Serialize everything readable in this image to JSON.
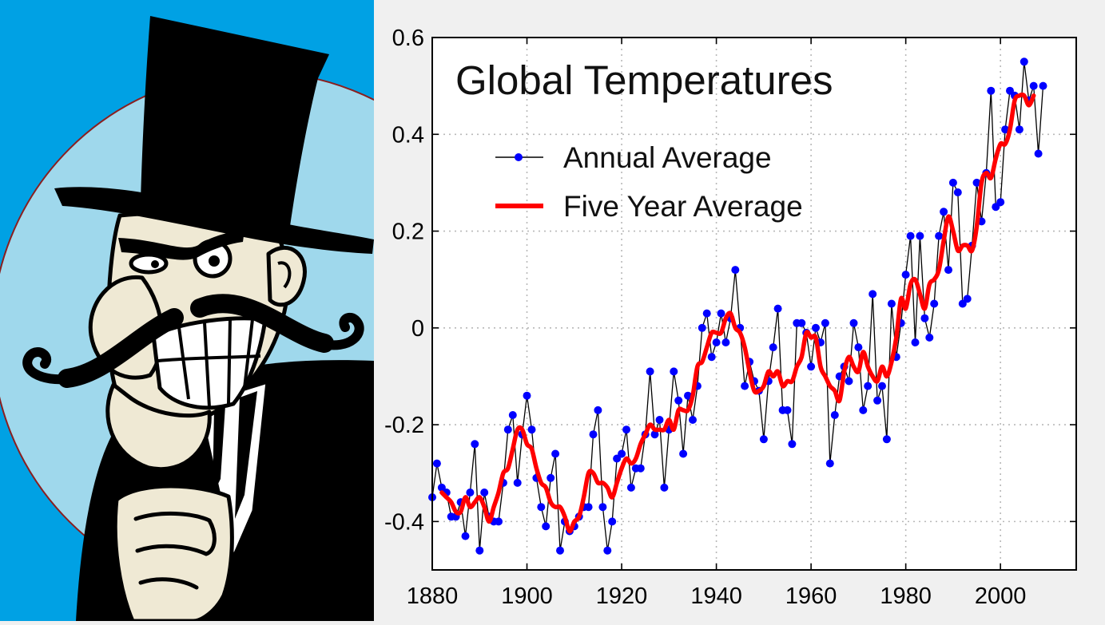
{
  "illustration": {
    "background_color": "#00a1e4",
    "circle_color": "#9fd8ec",
    "circle_border_color": "#8b1e1e",
    "skin_color": "#efe9d4"
  },
  "chart_data": {
    "type": "line",
    "title": "Global Temperatures",
    "xlim": [
      1880,
      2016
    ],
    "ylim": [
      -0.5,
      0.6
    ],
    "x_ticks": [
      1880,
      1900,
      1920,
      1940,
      1960,
      1980,
      2000
    ],
    "x_tick_labels": [
      "1880",
      "1900",
      "1920",
      "1940",
      "1960",
      "1980",
      "2000"
    ],
    "y_ticks": [
      -0.4,
      -0.2,
      0,
      0.2,
      0.4,
      0.6
    ],
    "y_tick_labels": [
      "-0.4",
      "-0.2",
      "0",
      "0.2",
      "0.4",
      "0.6"
    ],
    "grid": true,
    "legend_position": "top-left",
    "series": [
      {
        "name": "Annual Average",
        "marker": "circle",
        "marker_color": "#0000ff",
        "line_color": "#000000",
        "x": [
          1880,
          1881,
          1882,
          1883,
          1884,
          1885,
          1886,
          1887,
          1888,
          1889,
          1890,
          1891,
          1892,
          1893,
          1894,
          1895,
          1896,
          1897,
          1898,
          1899,
          1900,
          1901,
          1902,
          1903,
          1904,
          1905,
          1906,
          1907,
          1908,
          1909,
          1910,
          1911,
          1912,
          1913,
          1914,
          1915,
          1916,
          1917,
          1918,
          1919,
          1920,
          1921,
          1922,
          1923,
          1924,
          1925,
          1926,
          1927,
          1928,
          1929,
          1930,
          1931,
          1932,
          1933,
          1934,
          1935,
          1936,
          1937,
          1938,
          1939,
          1940,
          1941,
          1942,
          1943,
          1944,
          1945,
          1946,
          1947,
          1948,
          1949,
          1950,
          1951,
          1952,
          1953,
          1954,
          1955,
          1956,
          1957,
          1958,
          1959,
          1960,
          1961,
          1962,
          1963,
          1964,
          1965,
          1966,
          1967,
          1968,
          1969,
          1970,
          1971,
          1972,
          1973,
          1974,
          1975,
          1976,
          1977,
          1978,
          1979,
          1980,
          1981,
          1982,
          1983,
          1984,
          1985,
          1986,
          1987,
          1988,
          1989,
          1990,
          1991,
          1992,
          1993,
          1994,
          1995,
          1996,
          1997,
          1998,
          1999,
          2000,
          2001,
          2002,
          2003,
          2004,
          2005,
          2006,
          2007,
          2008,
          2009
        ],
        "values": [
          -0.35,
          -0.28,
          -0.33,
          -0.34,
          -0.39,
          -0.39,
          -0.36,
          -0.43,
          -0.34,
          -0.24,
          -0.46,
          -0.34,
          -0.39,
          -0.4,
          -0.4,
          -0.32,
          -0.21,
          -0.18,
          -0.32,
          -0.22,
          -0.14,
          -0.21,
          -0.31,
          -0.37,
          -0.41,
          -0.31,
          -0.26,
          -0.46,
          -0.4,
          -0.42,
          -0.41,
          -0.39,
          -0.37,
          -0.37,
          -0.22,
          -0.17,
          -0.37,
          -0.46,
          -0.4,
          -0.27,
          -0.26,
          -0.21,
          -0.33,
          -0.29,
          -0.29,
          -0.22,
          -0.09,
          -0.22,
          -0.19,
          -0.33,
          -0.21,
          -0.09,
          -0.15,
          -0.26,
          -0.14,
          -0.19,
          -0.12,
          0.0,
          0.03,
          -0.06,
          -0.03,
          0.03,
          -0.03,
          0.02,
          0.12,
          0.0,
          -0.12,
          -0.07,
          -0.11,
          -0.13,
          -0.23,
          -0.11,
          -0.04,
          0.04,
          -0.17,
          -0.17,
          -0.24,
          0.01,
          0.01,
          -0.01,
          -0.08,
          0.0,
          -0.03,
          0.01,
          -0.28,
          -0.18,
          -0.1,
          -0.08,
          -0.11,
          0.01,
          -0.04,
          -0.17,
          -0.12,
          0.07,
          -0.15,
          -0.12,
          -0.23,
          0.05,
          -0.06,
          0.01,
          0.11,
          0.19,
          -0.03,
          0.19,
          0.02,
          -0.02,
          0.05,
          0.19,
          0.24,
          0.12,
          0.3,
          0.28,
          0.05,
          0.06,
          0.17,
          0.3,
          0.22,
          0.32,
          0.49,
          0.25,
          0.26,
          0.41,
          0.49,
          0.48,
          0.41,
          0.55,
          0.47,
          0.5,
          0.36,
          0.5
        ]
      },
      {
        "name": "Five Year Average",
        "line_color": "#ff0000",
        "x": [
          1882,
          1883,
          1884,
          1885,
          1886,
          1887,
          1888,
          1889,
          1890,
          1891,
          1892,
          1893,
          1894,
          1895,
          1896,
          1897,
          1898,
          1899,
          1900,
          1901,
          1902,
          1903,
          1904,
          1905,
          1906,
          1907,
          1908,
          1909,
          1910,
          1911,
          1912,
          1913,
          1914,
          1915,
          1916,
          1917,
          1918,
          1919,
          1920,
          1921,
          1922,
          1923,
          1924,
          1925,
          1926,
          1927,
          1928,
          1929,
          1930,
          1931,
          1932,
          1933,
          1934,
          1935,
          1936,
          1937,
          1938,
          1939,
          1940,
          1941,
          1942,
          1943,
          1944,
          1945,
          1946,
          1947,
          1948,
          1949,
          1950,
          1951,
          1952,
          1953,
          1954,
          1955,
          1956,
          1957,
          1958,
          1959,
          1960,
          1961,
          1962,
          1963,
          1964,
          1965,
          1966,
          1967,
          1968,
          1969,
          1970,
          1971,
          1972,
          1973,
          1974,
          1975,
          1976,
          1977,
          1978,
          1979,
          1980,
          1981,
          1982,
          1983,
          1984,
          1985,
          1986,
          1987,
          1988,
          1989,
          1990,
          1991,
          1992,
          1993,
          1994,
          1995,
          1996,
          1997,
          1998,
          1999,
          2000,
          2001,
          2002,
          2003,
          2004,
          2005,
          2006,
          2007
        ],
        "values": [
          -0.34,
          -0.35,
          -0.36,
          -0.38,
          -0.38,
          -0.35,
          -0.37,
          -0.36,
          -0.35,
          -0.37,
          -0.4,
          -0.37,
          -0.34,
          -0.3,
          -0.29,
          -0.25,
          -0.21,
          -0.21,
          -0.24,
          -0.25,
          -0.29,
          -0.32,
          -0.33,
          -0.36,
          -0.37,
          -0.37,
          -0.39,
          -0.42,
          -0.4,
          -0.39,
          -0.35,
          -0.3,
          -0.3,
          -0.32,
          -0.32,
          -0.33,
          -0.35,
          -0.32,
          -0.29,
          -0.27,
          -0.28,
          -0.27,
          -0.24,
          -0.22,
          -0.2,
          -0.21,
          -0.21,
          -0.21,
          -0.19,
          -0.21,
          -0.17,
          -0.17,
          -0.17,
          -0.14,
          -0.08,
          -0.07,
          -0.04,
          -0.01,
          -0.01,
          -0.01,
          0.02,
          0.03,
          0.0,
          -0.01,
          -0.04,
          -0.09,
          -0.13,
          -0.13,
          -0.12,
          -0.09,
          -0.1,
          -0.09,
          -0.12,
          -0.11,
          -0.11,
          -0.08,
          -0.06,
          -0.01,
          -0.02,
          -0.02,
          -0.08,
          -0.1,
          -0.12,
          -0.13,
          -0.15,
          -0.09,
          -0.06,
          -0.08,
          -0.09,
          -0.05,
          -0.08,
          -0.1,
          -0.11,
          -0.08,
          -0.1,
          -0.07,
          -0.02,
          0.06,
          0.04,
          0.09,
          0.1,
          0.07,
          0.04,
          0.09,
          0.1,
          0.12,
          0.18,
          0.23,
          0.2,
          0.16,
          0.17,
          0.17,
          0.16,
          0.21,
          0.3,
          0.32,
          0.31,
          0.35,
          0.38,
          0.38,
          0.41,
          0.47,
          0.48,
          0.48,
          0.46,
          0.48
        ]
      }
    ]
  }
}
